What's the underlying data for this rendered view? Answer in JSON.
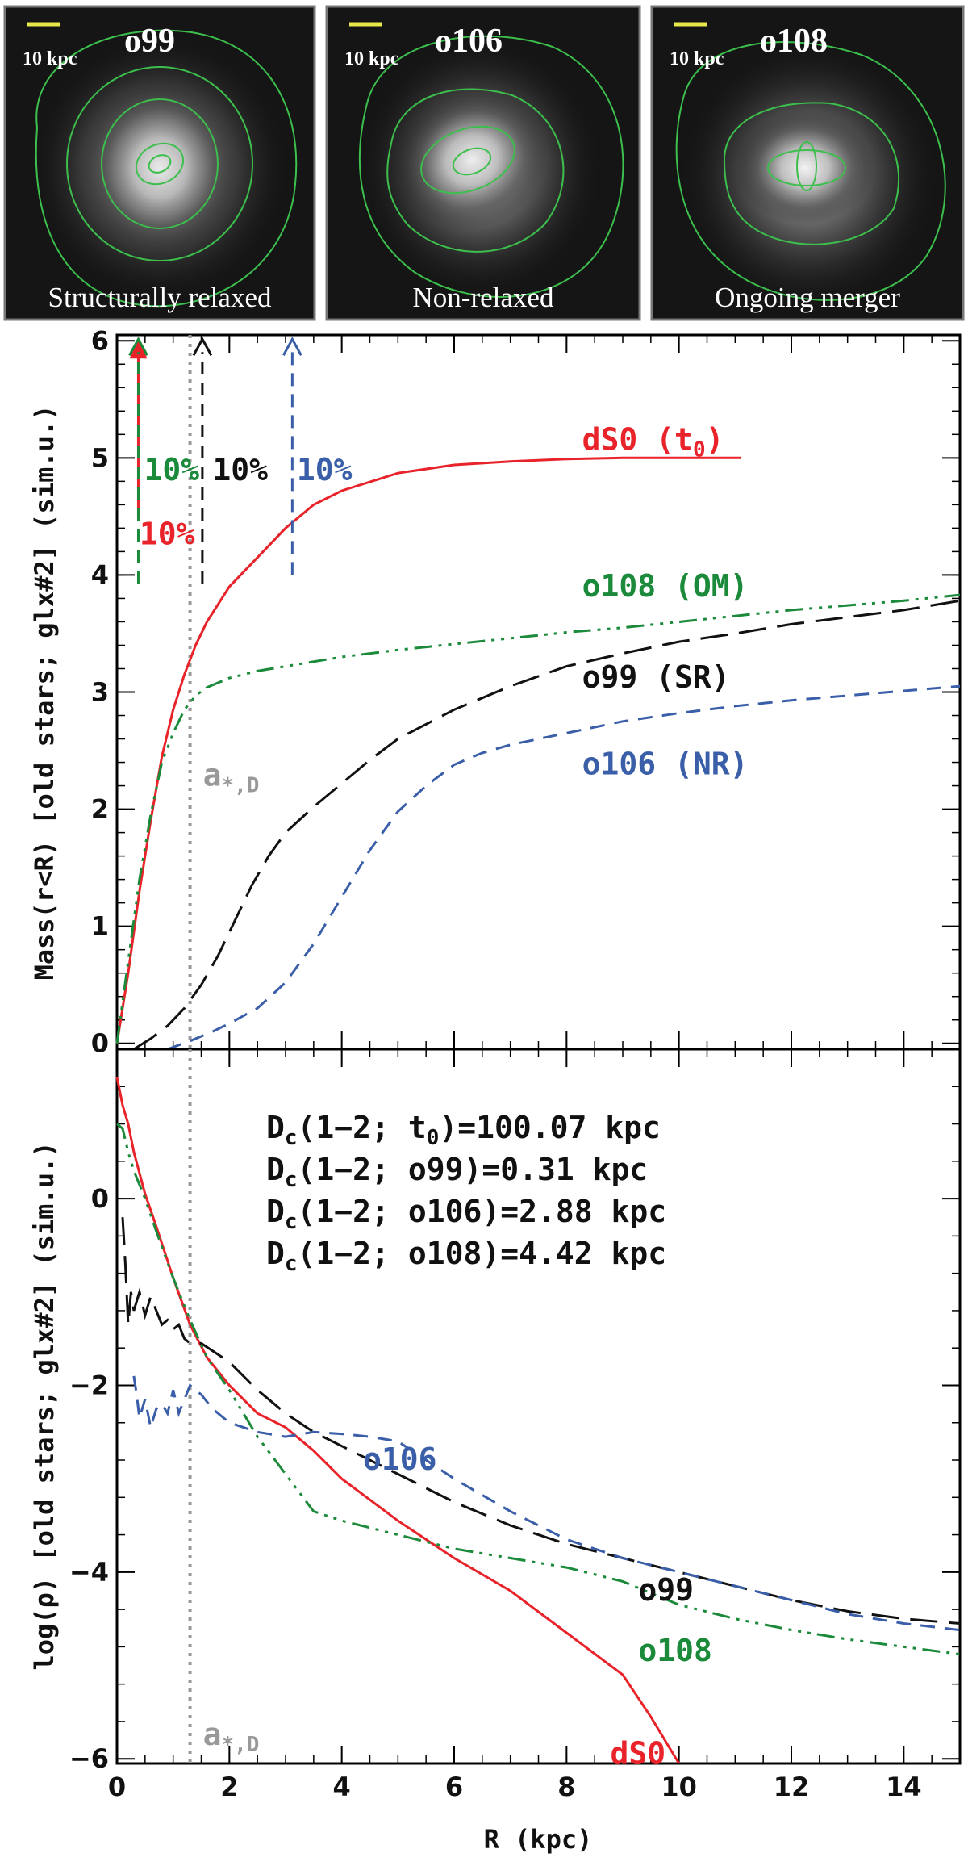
{
  "images": [
    {
      "name": "o99",
      "caption": "Structurally relaxed",
      "scale_label": "10 kpc"
    },
    {
      "name": "o106",
      "caption": "Non-relaxed",
      "scale_label": "10 kpc"
    },
    {
      "name": "o108",
      "caption": "Ongoing merger",
      "scale_label": "10 kpc"
    }
  ],
  "colors": {
    "dS0": "#e8232a",
    "o99": "#111111",
    "o106": "#3a5fa8",
    "o108": "#1b8a3a",
    "marker": "#999999"
  },
  "chart_data": [
    {
      "type": "line",
      "title": "",
      "xlabel": "",
      "ylabel": "Mass(r<R) [old stars; glx#2] (sim.u.)",
      "xlim": [
        0,
        15
      ],
      "ylim": [
        -0.05,
        6.05
      ],
      "yticks": [
        0,
        1,
        2,
        3,
        4,
        5,
        6
      ],
      "tick_labels_y": [
        "0",
        "1",
        "2",
        "3",
        "4",
        "5",
        "6"
      ],
      "marker": {
        "x": 1.3,
        "label": "a*,D",
        "label_y": 2.2
      },
      "series": [
        {
          "name": "dS0 (t0)",
          "key": "dS0",
          "label": "dS0 (t",
          "label_sub": "0",
          "label_end": ")",
          "label_at": [
            10.0,
            5.15
          ],
          "x": [
            0,
            0.2,
            0.4,
            0.6,
            0.8,
            1.0,
            1.2,
            1.4,
            1.6,
            2.0,
            2.5,
            3.0,
            3.5,
            4.0,
            5.0,
            6.0,
            7.0,
            8.0,
            9.0,
            10.0,
            11.1
          ],
          "y": [
            0,
            0.6,
            1.3,
            1.9,
            2.45,
            2.85,
            3.15,
            3.4,
            3.6,
            3.9,
            4.15,
            4.4,
            4.6,
            4.72,
            4.87,
            4.94,
            4.97,
            4.99,
            5.0,
            5.0,
            5.0
          ]
        },
        {
          "name": "o108 (OM)",
          "key": "o108",
          "label": "o108 (OM)",
          "label_at": [
            10.0,
            3.9
          ],
          "x": [
            0,
            0.2,
            0.4,
            0.6,
            0.8,
            1.0,
            1.2,
            1.4,
            1.6,
            1.8,
            2.0,
            2.5,
            3.0,
            4.0,
            5.0,
            6.0,
            7.0,
            8.0,
            9.0,
            10.0,
            11.0,
            12.0,
            13.0,
            14.0,
            15.0
          ],
          "y": [
            0,
            0.7,
            1.4,
            1.95,
            2.4,
            2.65,
            2.85,
            2.97,
            3.04,
            3.08,
            3.12,
            3.18,
            3.22,
            3.3,
            3.36,
            3.41,
            3.46,
            3.51,
            3.55,
            3.6,
            3.65,
            3.7,
            3.74,
            3.78,
            3.83
          ]
        },
        {
          "name": "o99 (SR)",
          "key": "o99",
          "label": "o99 (SR)",
          "label_at": [
            10.0,
            3.12
          ],
          "x": [
            0.3,
            0.6,
            0.9,
            1.2,
            1.5,
            1.8,
            2.1,
            2.4,
            2.7,
            3.0,
            3.5,
            4.0,
            4.5,
            5.0,
            6.0,
            7.0,
            8.0,
            9.0,
            10.0,
            11.0,
            12.0,
            13.0,
            14.0,
            15.0
          ],
          "y": [
            -0.05,
            0.04,
            0.15,
            0.3,
            0.5,
            0.75,
            1.05,
            1.35,
            1.6,
            1.8,
            2.02,
            2.22,
            2.42,
            2.6,
            2.85,
            3.05,
            3.22,
            3.33,
            3.43,
            3.5,
            3.58,
            3.64,
            3.7,
            3.78
          ]
        },
        {
          "name": "o106 (NR)",
          "key": "o106",
          "label": "o106 (NR)",
          "label_at": [
            10.0,
            2.38
          ],
          "x": [
            0.9,
            1.3,
            1.7,
            2.0,
            2.5,
            3.0,
            3.5,
            4.0,
            4.5,
            5.0,
            5.5,
            6.0,
            6.5,
            7.0,
            8.0,
            9.0,
            10.0,
            11.0,
            12.0,
            13.0,
            14.0,
            15.0
          ],
          "y": [
            -0.05,
            0.02,
            0.1,
            0.17,
            0.3,
            0.52,
            0.85,
            1.25,
            1.65,
            1.98,
            2.2,
            2.38,
            2.48,
            2.55,
            2.65,
            2.75,
            2.82,
            2.88,
            2.93,
            2.97,
            3.01,
            3.05
          ]
        }
      ],
      "arrows": [
        {
          "key": "dS0",
          "x": 0.38,
          "y_start": 4.5,
          "y_end": 6.0,
          "solid": true,
          "label": "10%",
          "label_at": [
            0.4,
            4.26
          ]
        },
        {
          "key": "o108",
          "x": 0.38,
          "y_start": 3.92,
          "y_end": 6.0,
          "solid": false,
          "label": "10%",
          "label_at": [
            0.48,
            4.81
          ]
        },
        {
          "key": "o99",
          "x": 1.52,
          "y_start": 3.92,
          "y_end": 6.0,
          "solid": false,
          "label": "10%",
          "label_at": [
            1.7,
            4.81
          ]
        },
        {
          "key": "o106",
          "x": 3.12,
          "y_start": 4.0,
          "y_end": 6.0,
          "solid": false,
          "label": "10%",
          "label_at": [
            3.2,
            4.81
          ]
        }
      ]
    },
    {
      "type": "line",
      "title": "",
      "xlabel": "R (kpc)",
      "ylabel": "log(ρ) [old stars; glx#2] (sim.u.)",
      "xlim": [
        0,
        15
      ],
      "ylim": [
        -6.05,
        1.6
      ],
      "xticks": [
        0,
        2,
        4,
        6,
        8,
        10,
        12,
        14
      ],
      "tick_labels_x": [
        "0",
        "2",
        "4",
        "6",
        "8",
        "10",
        "12",
        "14"
      ],
      "yticks": [
        0,
        -2,
        -4,
        -6
      ],
      "tick_labels_y": [
        "0",
        "−2",
        "−4",
        "−6"
      ],
      "marker": {
        "x": 1.3,
        "label": "a*,D",
        "label_y": -5.85
      },
      "annotations": [
        {
          "prefix": "D",
          "sub": "c",
          "mid": "(1−2; t",
          "sub2": "0",
          "suffix": ")=100.07 kpc"
        },
        {
          "prefix": "D",
          "sub": "c",
          "mid": "(1−2; o99)=0.31 kpc"
        },
        {
          "prefix": "D",
          "sub": "c",
          "mid": "(1−2; o106)=2.88 kpc"
        },
        {
          "prefix": "D",
          "sub": "c",
          "mid": "(1−2; o108)=4.42 kpc"
        }
      ],
      "series": [
        {
          "name": "dS0",
          "key": "dS0",
          "label": "dS0",
          "label_at": [
            10.5,
            -5.95
          ],
          "x": [
            0,
            0.1,
            0.2,
            0.3,
            0.5,
            0.7,
            1.0,
            1.3,
            1.6,
            2.0,
            2.5,
            3.0,
            3.5,
            4.0,
            5.0,
            6.0,
            7.0,
            8.0,
            9.0,
            9.5,
            10.0
          ],
          "y": [
            1.3,
            1.0,
            0.8,
            0.5,
            0.05,
            -0.3,
            -0.85,
            -1.35,
            -1.7,
            -2.0,
            -2.3,
            -2.45,
            -2.7,
            -3.0,
            -3.45,
            -3.85,
            -4.2,
            -4.65,
            -5.1,
            -5.55,
            -6.05
          ]
        },
        {
          "name": "o99",
          "key": "o99",
          "label": "o99",
          "label_at": [
            11.0,
            -4.2
          ],
          "x": [
            0.1,
            0.15,
            0.2,
            0.25,
            0.3,
            0.4,
            0.5,
            0.6,
            0.7,
            0.8,
            0.9,
            1.0,
            1.1,
            1.2,
            1.3,
            1.5,
            2.0,
            2.5,
            3.0,
            3.5,
            4.0,
            5.0,
            6.0,
            7.0,
            8.0,
            9.0,
            10.0,
            11.0,
            12.0,
            13.0,
            14.0,
            15.0
          ],
          "y": [
            -0.2,
            -0.7,
            -1.35,
            -1.0,
            -1.2,
            -1.0,
            -1.25,
            -1.05,
            -1.2,
            -1.35,
            -1.3,
            -1.4,
            -1.35,
            -1.5,
            -1.55,
            -1.55,
            -1.75,
            -2.05,
            -2.3,
            -2.5,
            -2.65,
            -2.95,
            -3.25,
            -3.5,
            -3.7,
            -3.85,
            -4.0,
            -4.15,
            -4.3,
            -4.42,
            -4.5,
            -4.55
          ]
        },
        {
          "name": "o106",
          "key": "o106",
          "label": "o106",
          "label_at": [
            6.1,
            -2.8
          ],
          "x": [
            0.3,
            0.35,
            0.4,
            0.5,
            0.6,
            0.7,
            0.8,
            0.9,
            1.0,
            1.1,
            1.2,
            1.3,
            1.5,
            1.7,
            2.0,
            2.5,
            3.0,
            3.5,
            4.0,
            4.5,
            5.0,
            6.0,
            7.0,
            8.0,
            9.0,
            10.0,
            11.0,
            12.0,
            13.0,
            14.0,
            15.0
          ],
          "y": [
            -1.9,
            -2.1,
            -2.35,
            -2.15,
            -2.45,
            -2.25,
            -2.2,
            -2.3,
            -2.05,
            -2.3,
            -2.15,
            -2.0,
            -2.1,
            -2.25,
            -2.4,
            -2.5,
            -2.55,
            -2.5,
            -2.52,
            -2.55,
            -2.6,
            -3.0,
            -3.35,
            -3.65,
            -3.85,
            -4.0,
            -4.15,
            -4.3,
            -4.45,
            -4.55,
            -4.62
          ]
        },
        {
          "name": "o108",
          "key": "o108",
          "label": "o108",
          "label_at": [
            11.0,
            -4.85
          ],
          "x": [
            0,
            0.1,
            0.2,
            0.3,
            0.5,
            0.7,
            1.0,
            1.3,
            1.6,
            2.0,
            2.5,
            3.0,
            3.5,
            4.0,
            5.0,
            6.0,
            7.0,
            8.0,
            9.0,
            10.0,
            11.0,
            12.0,
            13.0,
            14.0,
            15.0
          ],
          "y": [
            0.8,
            0.75,
            0.5,
            0.3,
            0.0,
            -0.35,
            -0.85,
            -1.3,
            -1.7,
            -2.05,
            -2.55,
            -2.95,
            -3.35,
            -3.45,
            -3.6,
            -3.75,
            -3.85,
            -3.95,
            -4.1,
            -4.35,
            -4.5,
            -4.62,
            -4.72,
            -4.8,
            -4.88
          ]
        }
      ]
    }
  ]
}
